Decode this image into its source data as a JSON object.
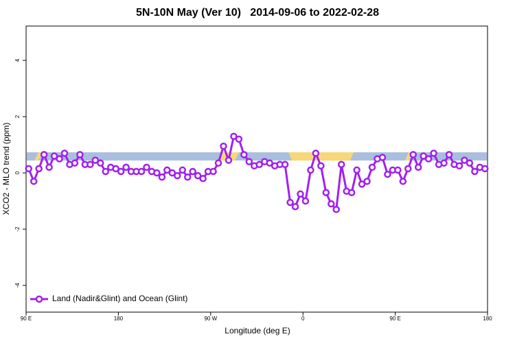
{
  "chart_data": {
    "type": "line",
    "title": "5N-10N May (Ver 10)   2014-09-06 to 2022-02-28",
    "xlabel": "Longitude (deg E)",
    "ylabel": "XCO2 - MLO trend (ppm)",
    "x": [
      92.5,
      97.5,
      102.5,
      107.5,
      112.5,
      117.5,
      122.5,
      127.5,
      132.5,
      137.5,
      142.5,
      147.5,
      152.5,
      157.5,
      162.5,
      167.5,
      172.5,
      177.5,
      182.5,
      187.5,
      192.5,
      197.5,
      202.5,
      207.5,
      212.5,
      217.5,
      222.5,
      227.5,
      232.5,
      237.5,
      242.5,
      247.5,
      252.5,
      257.5,
      262.5,
      267.5,
      272.5,
      277.5,
      282.5,
      287.5,
      292.5,
      297.5,
      302.5,
      307.5,
      312.5,
      317.5,
      322.5,
      327.5,
      332.5,
      337.5,
      342.5,
      347.5,
      352.5,
      357.5,
      362.5,
      367.5,
      372.5,
      377.5,
      382.5,
      387.5,
      392.5,
      397.5,
      402.5,
      407.5,
      412.5,
      417.5,
      422.5,
      427.5,
      432.5,
      437.5,
      442.5,
      447.5,
      452.5,
      457.5,
      462.5,
      467.5,
      472.5,
      477.5,
      482.5,
      487.5,
      492.5,
      497.5,
      502.5,
      507.5,
      512.5,
      517.5,
      522.5,
      527.5,
      532.5,
      537.5
    ],
    "series": [
      {
        "name": "Land (Nadir&Glint) and Ocean (Glint)",
        "color": "#a020f0",
        "values": [
          0.15,
          -0.3,
          0.15,
          0.65,
          0.2,
          0.6,
          0.5,
          0.7,
          0.3,
          0.35,
          0.65,
          0.3,
          0.3,
          0.45,
          0.35,
          0.05,
          0.2,
          0.15,
          0.05,
          0.2,
          0.05,
          0.05,
          0.05,
          0.2,
          0.05,
          0,
          -0.15,
          0.1,
          0,
          -0.1,
          0.1,
          -0.15,
          0.05,
          -0.1,
          -0.2,
          0.05,
          0.05,
          0.35,
          0.95,
          0.45,
          1.3,
          1.2,
          0.65,
          0.4,
          0.25,
          0.3,
          0.4,
          0.35,
          0.25,
          0.3,
          0.3,
          -1.05,
          -1.2,
          -0.75,
          -1.0,
          0.1,
          0.7,
          0.25,
          -0.7,
          -1.1,
          -1.3,
          0.3,
          -0.65,
          -0.7,
          0.1,
          -0.4,
          -0.3,
          0.2,
          0.5,
          0.55,
          -0.05,
          0.1,
          0.1,
          -0.3,
          0.15,
          0.65,
          0.2,
          0.6,
          0.5,
          0.7,
          0.3,
          0.35,
          0.65,
          0.3,
          0.25,
          0.45,
          0.35,
          0.05,
          0.2,
          0.15
        ]
      }
    ],
    "xlim": [
      90,
      540
    ],
    "xticks": [
      {
        "value": 90,
        "label": "90 E"
      },
      180,
      {
        "value": 270,
        "label": "90 W"
      },
      {
        "value": 360,
        "label": "0"
      },
      {
        "value": 450,
        "label": "90 E"
      },
      {
        "value": 540,
        "label": "180"
      }
    ],
    "ylim": [
      -4.95,
      5.22
    ],
    "yticks": [
      -4,
      -2,
      0,
      2,
      4
    ],
    "legend": "bottom-left"
  }
}
